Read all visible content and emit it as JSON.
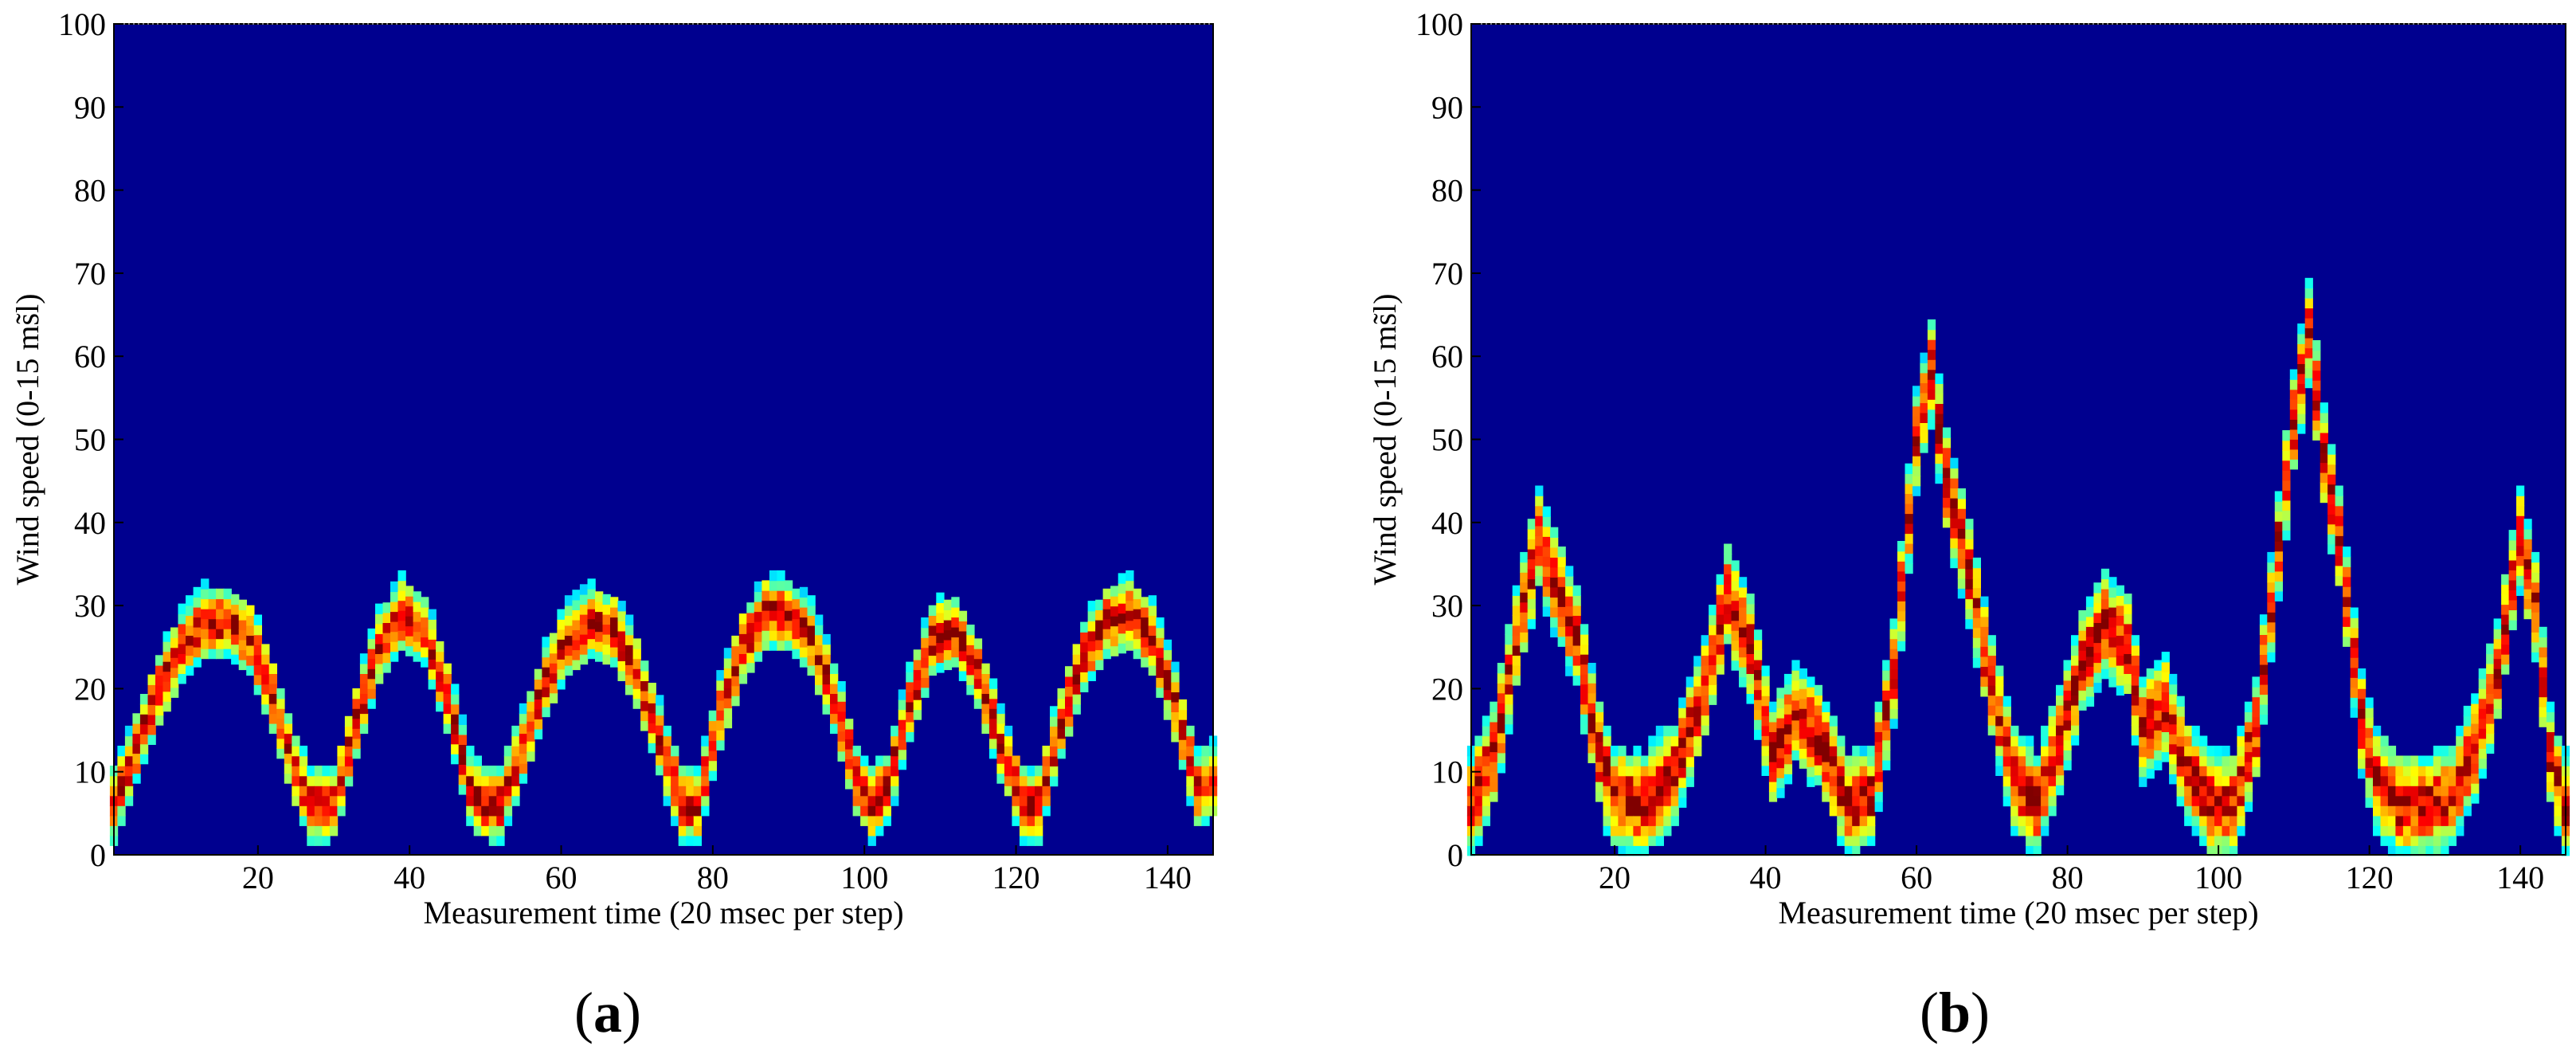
{
  "chart_data": [
    {
      "type": "heatmap",
      "panel_label_open": "(",
      "panel_label_letter": "a",
      "panel_label_close": ")",
      "title": "",
      "xlabel": "Measurement time (20 msec per step)",
      "ylabel": "Wind speed (0-15 ms̃l)",
      "xlim": [
        1,
        146
      ],
      "ylim": [
        0,
        100
      ],
      "xticks": [
        20,
        40,
        60,
        80,
        100,
        120,
        140
      ],
      "yticks": [
        0,
        10,
        20,
        30,
        40,
        50,
        60,
        70,
        80,
        90,
        100
      ],
      "background_color": "#00008f",
      "colormap": "jet",
      "ridge_points": [
        [
          1,
          6
        ],
        [
          4,
          13
        ],
        [
          7,
          20
        ],
        [
          10,
          25
        ],
        [
          13,
          28
        ],
        [
          16,
          28
        ],
        [
          19,
          26
        ],
        [
          22,
          19
        ],
        [
          25,
          10
        ],
        [
          27,
          6
        ],
        [
          30,
          6
        ],
        [
          33,
          16
        ],
        [
          36,
          25
        ],
        [
          39,
          29
        ],
        [
          42,
          27
        ],
        [
          45,
          19
        ],
        [
          48,
          8
        ],
        [
          50,
          6
        ],
        [
          52,
          6
        ],
        [
          55,
          13
        ],
        [
          58,
          21
        ],
        [
          61,
          26
        ],
        [
          64,
          28
        ],
        [
          67,
          27
        ],
        [
          70,
          22
        ],
        [
          73,
          14
        ],
        [
          76,
          6
        ],
        [
          78,
          6
        ],
        [
          81,
          17
        ],
        [
          84,
          25
        ],
        [
          87,
          29
        ],
        [
          90,
          29
        ],
        [
          93,
          26
        ],
        [
          96,
          19
        ],
        [
          99,
          9
        ],
        [
          101,
          6
        ],
        [
          103,
          8
        ],
        [
          106,
          18
        ],
        [
          109,
          26
        ],
        [
          112,
          27
        ],
        [
          115,
          22
        ],
        [
          118,
          13
        ],
        [
          121,
          6
        ],
        [
          123,
          6
        ],
        [
          126,
          16
        ],
        [
          129,
          24
        ],
        [
          132,
          28
        ],
        [
          135,
          29
        ],
        [
          138,
          26
        ],
        [
          141,
          18
        ],
        [
          144,
          8
        ],
        [
          146,
          9
        ]
      ]
    },
    {
      "type": "heatmap",
      "panel_label_open": "(",
      "panel_label_letter": "b",
      "panel_label_close": ")",
      "title": "",
      "xlabel": "Measurement time (20 msec per step)",
      "ylabel": "Wind speed (0-15 ms̃l)",
      "xlim": [
        1,
        146
      ],
      "ylim": [
        0,
        100
      ],
      "xticks": [
        20,
        40,
        60,
        80,
        100,
        120,
        140
      ],
      "yticks": [
        0,
        10,
        20,
        30,
        40,
        50,
        60,
        70,
        80,
        90,
        100
      ],
      "background_color": "#00008f",
      "colormap": "jet",
      "ridge_points": [
        [
          1,
          6
        ],
        [
          4,
          12
        ],
        [
          7,
          26
        ],
        [
          10,
          38
        ],
        [
          12,
          33
        ],
        [
          15,
          26
        ],
        [
          18,
          12
        ],
        [
          20,
          7
        ],
        [
          24,
          6
        ],
        [
          28,
          10
        ],
        [
          32,
          20
        ],
        [
          35,
          31
        ],
        [
          38,
          25
        ],
        [
          41,
          12
        ],
        [
          44,
          17
        ],
        [
          47,
          14
        ],
        [
          51,
          6
        ],
        [
          54,
          7
        ],
        [
          57,
          22
        ],
        [
          60,
          50
        ],
        [
          62,
          58
        ],
        [
          64,
          45
        ],
        [
          67,
          34
        ],
        [
          70,
          20
        ],
        [
          73,
          9
        ],
        [
          76,
          6
        ],
        [
          79,
          14
        ],
        [
          82,
          23
        ],
        [
          85,
          28
        ],
        [
          88,
          25
        ],
        [
          90,
          15
        ],
        [
          93,
          18
        ],
        [
          96,
          10
        ],
        [
          99,
          6
        ],
        [
          102,
          6
        ],
        [
          105,
          15
        ],
        [
          107,
          30
        ],
        [
          110,
          52
        ],
        [
          112,
          63
        ],
        [
          114,
          48
        ],
        [
          116,
          38
        ],
        [
          119,
          16
        ],
        [
          121,
          9
        ],
        [
          124,
          6
        ],
        [
          128,
          6
        ],
        [
          131,
          7
        ],
        [
          134,
          13
        ],
        [
          137,
          22
        ],
        [
          140,
          38
        ],
        [
          142,
          30
        ],
        [
          144,
          12
        ],
        [
          146,
          6
        ]
      ]
    }
  ]
}
